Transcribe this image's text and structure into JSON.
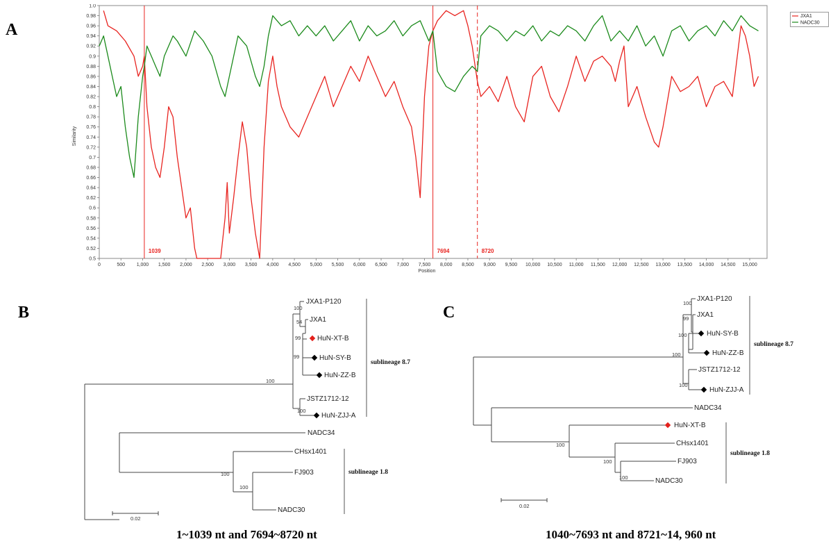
{
  "panels": {
    "a": "A",
    "b": "B",
    "c": "C"
  },
  "chart_data": {
    "type": "line",
    "xlabel": "Position",
    "ylabel": "Similarity",
    "xlim": [
      0,
      15400
    ],
    "ylim": [
      0.5,
      1.0
    ],
    "x_ticks": [
      "0",
      "500",
      "1,000",
      "1,500",
      "2,000",
      "2,500",
      "3,000",
      "3,500",
      "4,000",
      "4,500",
      "5,000",
      "5,500",
      "6,000",
      "6,500",
      "7,000",
      "7,500",
      "8,000",
      "8,500",
      "9,000",
      "9,500",
      "10,000",
      "10,500",
      "11,000",
      "11,500",
      "12,000",
      "12,500",
      "13,000",
      "13,500",
      "14,000",
      "14,500",
      "15,000"
    ],
    "y_ticks": [
      "0.5",
      "0.52",
      "0.54",
      "0.56",
      "0.58",
      "0.6",
      "0.62",
      "0.64",
      "0.66",
      "0.68",
      "0.7",
      "0.72",
      "0.74",
      "0.76",
      "0.78",
      "0.8",
      "0.82",
      "0.84",
      "0.86",
      "0.88",
      "0.9",
      "0.92",
      "0.94",
      "0.96",
      "0.98",
      "1.0"
    ],
    "legend_position": "top-right",
    "colors": {
      "JXA1": "#e8231f",
      "NADC30": "#1b8a1b"
    },
    "breakpoints": [
      {
        "x": 1039,
        "label": "1039",
        "style": "solid"
      },
      {
        "x": 7694,
        "label": "7694",
        "style": "solid"
      },
      {
        "x": 8720,
        "label": "8720",
        "style": "dashed"
      }
    ],
    "series": [
      {
        "name": "JXA1",
        "x": [
          100,
          200,
          400,
          600,
          800,
          900,
          1000,
          1039,
          1100,
          1200,
          1300,
          1400,
          1500,
          1600,
          1700,
          1800,
          1900,
          2000,
          2100,
          2200,
          2250,
          2300,
          2400,
          2500,
          2600,
          2700,
          2800,
          2900,
          2950,
          3000,
          3100,
          3200,
          3300,
          3400,
          3500,
          3600,
          3700,
          3800,
          3900,
          4000,
          4100,
          4200,
          4400,
          4600,
          4800,
          5000,
          5200,
          5400,
          5600,
          5800,
          6000,
          6200,
          6400,
          6600,
          6800,
          7000,
          7200,
          7300,
          7400,
          7500,
          7600,
          7694,
          7800,
          8000,
          8200,
          8400,
          8500,
          8600,
          8720,
          8800,
          9000,
          9200,
          9400,
          9600,
          9800,
          10000,
          10200,
          10400,
          10600,
          10800,
          11000,
          11200,
          11400,
          11600,
          11800,
          11900,
          12000,
          12100,
          12200,
          12400,
          12600,
          12800,
          12900,
          13000,
          13200,
          13400,
          13600,
          13800,
          14000,
          14200,
          14400,
          14600,
          14800,
          14900,
          15000,
          15100,
          15200
        ],
        "y": [
          0.99,
          0.96,
          0.95,
          0.93,
          0.9,
          0.86,
          0.88,
          0.9,
          0.8,
          0.72,
          0.68,
          0.66,
          0.72,
          0.8,
          0.78,
          0.7,
          0.64,
          0.58,
          0.6,
          0.52,
          0.5,
          0.5,
          0.5,
          0.5,
          0.5,
          0.5,
          0.5,
          0.58,
          0.65,
          0.55,
          0.62,
          0.7,
          0.77,
          0.72,
          0.62,
          0.55,
          0.5,
          0.72,
          0.85,
          0.9,
          0.84,
          0.8,
          0.76,
          0.74,
          0.78,
          0.82,
          0.86,
          0.8,
          0.84,
          0.88,
          0.85,
          0.9,
          0.86,
          0.82,
          0.85,
          0.8,
          0.76,
          0.7,
          0.62,
          0.82,
          0.92,
          0.95,
          0.97,
          0.99,
          0.98,
          0.99,
          0.96,
          0.92,
          0.85,
          0.82,
          0.84,
          0.81,
          0.86,
          0.8,
          0.77,
          0.86,
          0.88,
          0.82,
          0.79,
          0.84,
          0.9,
          0.85,
          0.89,
          0.9,
          0.88,
          0.85,
          0.89,
          0.92,
          0.8,
          0.84,
          0.78,
          0.73,
          0.72,
          0.76,
          0.86,
          0.83,
          0.84,
          0.86,
          0.8,
          0.84,
          0.85,
          0.82,
          0.96,
          0.94,
          0.9,
          0.84,
          0.86
        ]
      },
      {
        "name": "NADC30",
        "x": [
          0,
          100,
          200,
          300,
          400,
          500,
          600,
          700,
          800,
          900,
          1000,
          1039,
          1100,
          1200,
          1300,
          1400,
          1500,
          1600,
          1700,
          1800,
          2000,
          2200,
          2400,
          2600,
          2800,
          2900,
          3000,
          3200,
          3400,
          3600,
          3700,
          3800,
          3900,
          4000,
          4200,
          4400,
          4600,
          4800,
          5000,
          5200,
          5400,
          5600,
          5800,
          6000,
          6200,
          6400,
          6600,
          6800,
          7000,
          7200,
          7400,
          7600,
          7694,
          7800,
          8000,
          8200,
          8400,
          8600,
          8720,
          8800,
          9000,
          9200,
          9400,
          9600,
          9800,
          10000,
          10200,
          10400,
          10600,
          10800,
          11000,
          11200,
          11400,
          11600,
          11800,
          12000,
          12200,
          12400,
          12600,
          12800,
          13000,
          13200,
          13400,
          13600,
          13800,
          14000,
          14200,
          14400,
          14600,
          14800,
          15000,
          15200
        ],
        "y": [
          0.92,
          0.94,
          0.9,
          0.86,
          0.82,
          0.84,
          0.76,
          0.7,
          0.66,
          0.78,
          0.86,
          0.88,
          0.92,
          0.9,
          0.88,
          0.86,
          0.9,
          0.92,
          0.94,
          0.93,
          0.9,
          0.95,
          0.93,
          0.9,
          0.84,
          0.82,
          0.86,
          0.94,
          0.92,
          0.86,
          0.84,
          0.88,
          0.94,
          0.98,
          0.96,
          0.97,
          0.94,
          0.96,
          0.94,
          0.96,
          0.93,
          0.95,
          0.97,
          0.93,
          0.96,
          0.94,
          0.95,
          0.97,
          0.94,
          0.96,
          0.97,
          0.93,
          0.95,
          0.87,
          0.84,
          0.83,
          0.86,
          0.88,
          0.87,
          0.94,
          0.96,
          0.95,
          0.93,
          0.95,
          0.94,
          0.96,
          0.93,
          0.95,
          0.94,
          0.96,
          0.95,
          0.93,
          0.96,
          0.98,
          0.93,
          0.95,
          0.93,
          0.96,
          0.92,
          0.94,
          0.9,
          0.95,
          0.96,
          0.93,
          0.95,
          0.96,
          0.94,
          0.97,
          0.95,
          0.98,
          0.96,
          0.95
        ]
      }
    ]
  },
  "trees": {
    "b": {
      "scale_label": "0.02",
      "caption": "1~1039 nt and 7694~8720 nt",
      "clade_labels": {
        "sub87": "sublineage 8.7",
        "sub18": "sublineage 1.8"
      },
      "taxa": {
        "t1": "JXA1-P120",
        "t2": "JXA1",
        "t3": "HuN-XT-B",
        "t4": "HuN-SY-B",
        "t5": "HuN-ZZ-B",
        "t6": "JSTZ1712-12",
        "t7": "HuN-ZJJ-A",
        "t8": "NADC34",
        "t9": "CHsx1401",
        "t10": "FJ903",
        "t11": "NADC30"
      },
      "bootstraps": {
        "b1": "100",
        "b2": "54",
        "b3": "99",
        "b4": "99",
        "b5": "100",
        "b6": "100",
        "b7": "100",
        "b8": "100"
      }
    },
    "c": {
      "scale_label": "0.02",
      "caption": "1040~7693 nt and 8721~14, 960 nt",
      "clade_labels": {
        "sub87": "sublineage 8.7",
        "sub18": "sublineage 1.8"
      },
      "taxa": {
        "t1": "JXA1-P120",
        "t2": "JXA1",
        "t3": "HuN-SY-B",
        "t4": "HuN-ZZ-B",
        "t5": "JSTZ1712-12",
        "t6": "HuN-ZJJ-A",
        "t7": "NADC34",
        "t8": "HuN-XT-B",
        "t9": "CHsx1401",
        "t10": "FJ903",
        "t11": "NADC30"
      },
      "bootstraps": {
        "b1": "100",
        "b2": "99",
        "b3": "100",
        "b4": "100",
        "b5": "100",
        "b6": "100",
        "b7": "100"
      }
    }
  }
}
